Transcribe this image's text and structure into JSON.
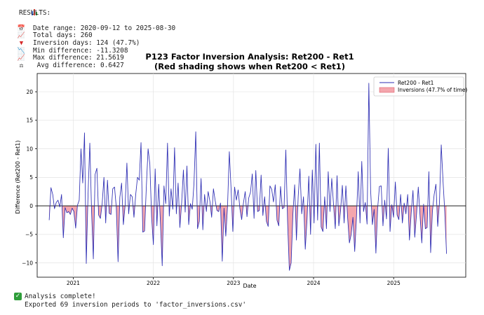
{
  "results": {
    "header": "RESULTS:",
    "lines": [
      {
        "icon": "calendar-icon",
        "glyph": "📅",
        "text": "Date range: 2020-09-12 to 2025-08-30"
      },
      {
        "icon": "chart-up-icon",
        "glyph": "📈",
        "text": "Total days: 260"
      },
      {
        "icon": "red-triangle-down-icon",
        "glyph": "▼",
        "text": "Inversion days: 124 (47.7%)"
      },
      {
        "icon": "chart-down-icon",
        "glyph": "📉",
        "text": "Min difference: -11.3208"
      },
      {
        "icon": "chart-up-icon",
        "glyph": "📈",
        "text": "Max difference: 21.5619"
      },
      {
        "icon": "balance-scale-icon",
        "glyph": "⚖",
        "text": " Avg difference: 0.6427"
      }
    ]
  },
  "footer": {
    "complete": "Analysis complete!",
    "exported": "Exported 69 inversion periods to 'factor_inversions.csv'"
  },
  "colors": {
    "line": "#2d2db3",
    "fill": "#f4a6ad",
    "zero": "#000000"
  },
  "chart_data": {
    "type": "line",
    "title": "P123 Factor Inversion Analysis: Ret200 - Ret1",
    "subtitle": "(Red shading shows when Ret200 < Ret1)",
    "xlabel": "Date",
    "ylabel": "Difference (Ret200 - Ret1)",
    "ylim": [
      -12.5,
      23.2
    ],
    "xlim": [
      2020.55,
      2025.9
    ],
    "x_ticks": [
      {
        "v": 2021,
        "label": "2021"
      },
      {
        "v": 2022,
        "label": "2022"
      },
      {
        "v": 2023,
        "label": "2023"
      },
      {
        "v": 2024,
        "label": "2024"
      },
      {
        "v": 2025,
        "label": "2025"
      }
    ],
    "y_ticks": [
      {
        "v": -10,
        "label": "−10"
      },
      {
        "v": -5,
        "label": "−5"
      },
      {
        "v": 0,
        "label": "0"
      },
      {
        "v": 5,
        "label": "5"
      },
      {
        "v": 10,
        "label": "10"
      },
      {
        "v": 15,
        "label": "15"
      },
      {
        "v": 20,
        "label": "20"
      }
    ],
    "legend_position": "top-right",
    "legend": [
      "Ret200 - Ret1",
      "Inversions (47.7% of time)"
    ],
    "series": [
      {
        "name": "Ret200 - Ret1",
        "start": 2020.7,
        "end": 2025.66,
        "values": [
          -2.5,
          3.2,
          2.0,
          -0.5,
          0.6,
          1.0,
          -0.2,
          2.0,
          -5.6,
          -0.3,
          -1.2,
          -1.0,
          -1.5,
          -0.4,
          -1.0,
          -3.9,
          0.1,
          1.0,
          10.0,
          4.0,
          12.8,
          -10.1,
          2.0,
          11.0,
          -1.0,
          -9.3,
          5.5,
          6.6,
          -1.6,
          -2.2,
          0.4,
          5.0,
          -3.0,
          4.5,
          -1.3,
          -1.5,
          3.0,
          3.3,
          -0.3,
          -9.8,
          1.5,
          4.0,
          -3.3,
          0.1,
          7.5,
          -1.4,
          2.0,
          1.6,
          -2.0,
          2.0,
          5.0,
          4.5,
          11.1,
          -4.6,
          -4.4,
          3.3,
          10.0,
          7.3,
          -2.0,
          -6.8,
          6.5,
          -3.5,
          3.8,
          -3.0,
          -10.5,
          3.5,
          0.4,
          11.0,
          -1.8,
          3.0,
          -0.6,
          10.2,
          -1.4,
          4.0,
          -3.8,
          0.5,
          6.3,
          -1.1,
          7.0,
          -3.3,
          0.4,
          -0.6,
          4.0,
          13.0,
          -4.0,
          -2.7,
          4.8,
          -4.2,
          2.0,
          -1.0,
          2.5,
          0.8,
          -2.0,
          3.0,
          0.9,
          -0.8,
          -1.0,
          0.5,
          -9.7,
          -0.4,
          -5.3,
          0.0,
          9.5,
          3.0,
          -4.5,
          3.3,
          1.0,
          2.8,
          -0.5,
          -2.4,
          0.5,
          2.5,
          -1.9,
          1.4,
          2.4,
          5.6,
          -2.2,
          6.2,
          -1.0,
          -0.8,
          5.4,
          -1.7,
          1.6,
          -2.7,
          -3.6,
          3.5,
          2.9,
          0.7,
          3.7,
          -2.5,
          -3.5,
          3.4,
          -0.5,
          -0.3,
          9.8,
          -2.8,
          -11.3,
          -10.0,
          -1.5,
          3.7,
          -6.0,
          1.6,
          6.5,
          -1.4,
          1.6,
          -7.6,
          -2.4,
          5.2,
          -5.0,
          6.3,
          -3.0,
          10.8,
          -2.5,
          11.0,
          -3.7,
          -4.5,
          1.6,
          -4.0,
          6.0,
          -1.0,
          4.8,
          0.3,
          -4.0,
          5.3,
          -3.5,
          -0.8,
          3.6,
          -3.0,
          3.5,
          -2.1,
          -6.5,
          -5.0,
          -2.0,
          -8.0,
          -2.0,
          6.0,
          -3.0,
          7.8,
          -1.0,
          0.6,
          -3.2,
          21.5,
          2.8,
          -3.3,
          -0.6,
          -8.3,
          -0.4,
          3.4,
          3.5,
          -3.5,
          1.0,
          -2.3,
          10.1,
          -4.5,
          0.2,
          -2.0,
          4.2,
          -1.6,
          -2.4,
          2.0,
          -3.0,
          0.5,
          -1.4,
          2.0,
          -6.0,
          -1.2,
          2.7,
          -5.5,
          -1.5,
          3.3,
          -1.8,
          -6.5,
          0.3,
          -4.0,
          -3.8,
          6.0,
          -8.2,
          -1.0,
          2.0,
          3.8,
          -3.6,
          0.6,
          10.7,
          4.4,
          -1.0,
          -8.4
        ]
      }
    ],
    "inversion_rate": "47.7%"
  }
}
